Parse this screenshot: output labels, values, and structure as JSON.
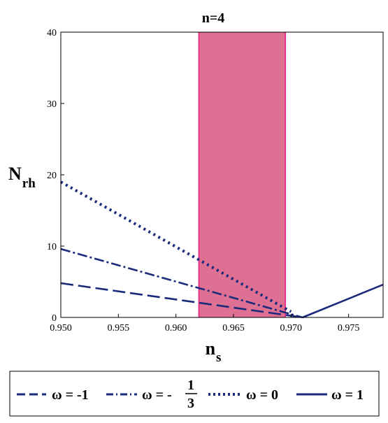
{
  "chart_data": {
    "type": "line",
    "title": "n=4",
    "xlabel": {
      "main": "n",
      "sub": "s"
    },
    "ylabel": {
      "main": "N",
      "sub": "rh"
    },
    "xlim": [
      0.95,
      0.978
    ],
    "ylim": [
      0,
      40
    ],
    "xticks": [
      0.95,
      0.955,
      0.96,
      0.965,
      0.97,
      0.975
    ],
    "xtick_labels": [
      "0.950",
      "0.955",
      "0.960",
      "0.965",
      "0.970",
      "0.975"
    ],
    "yticks": [
      0,
      10,
      20,
      30,
      40
    ],
    "ytick_labels": [
      "0",
      "10",
      "20",
      "30",
      "40"
    ],
    "grid": false,
    "band": {
      "x0": 0.962,
      "x1": 0.9695,
      "color": "#dd7093",
      "edge_color": "#e8308a"
    },
    "series": [
      {
        "key": "w_m1",
        "dash": "long-dash",
        "color": "#1b2a7a",
        "points": [
          [
            0.95,
            4.8
          ],
          [
            0.971,
            0.0
          ]
        ]
      },
      {
        "key": "w_m13",
        "dash": "dash-dot",
        "color": "#1b2a7a",
        "points": [
          [
            0.95,
            9.6
          ],
          [
            0.971,
            0.0
          ]
        ]
      },
      {
        "key": "w_0",
        "dash": "dotted",
        "color": "#1b2a7a",
        "points": [
          [
            0.95,
            19.0
          ],
          [
            0.97,
            0.8
          ]
        ]
      },
      {
        "key": "w_1",
        "dash": "solid",
        "color": "#1b2a7a",
        "points": [
          [
            0.971,
            0.0
          ],
          [
            0.978,
            4.6
          ]
        ]
      }
    ],
    "legend": {
      "placement": "bottom",
      "entries": [
        {
          "key": "w_m1",
          "label": "ω = -1"
        },
        {
          "key": "w_m13",
          "label_prefix": "ω = -",
          "frac_num": "1",
          "frac_den": "3"
        },
        {
          "key": "w_0",
          "label": "ω = 0"
        },
        {
          "key": "w_1",
          "label": "ω = 1"
        }
      ]
    }
  }
}
